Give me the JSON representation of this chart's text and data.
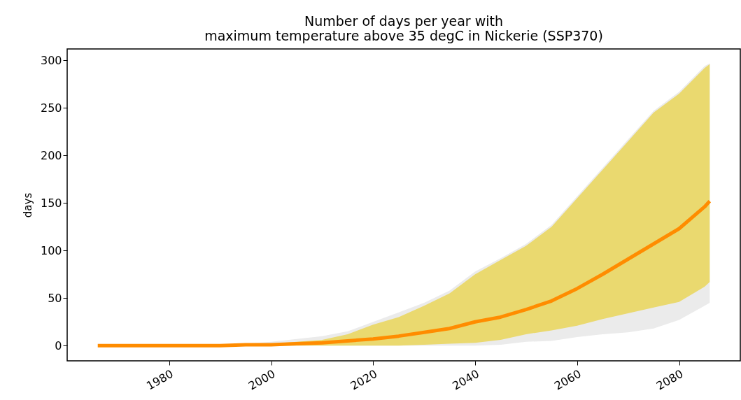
{
  "chart_data": {
    "type": "line",
    "title": "Number of days per year with\nmaximum temperature above 35 degC in Nickerie (SSP370)",
    "ylabel": "days",
    "x": [
      1966,
      1970,
      1975,
      1980,
      1985,
      1990,
      1995,
      2000,
      2005,
      2010,
      2015,
      2020,
      2025,
      2030,
      2035,
      2040,
      2045,
      2050,
      2055,
      2060,
      2065,
      2070,
      2075,
      2080,
      2085,
      2086
    ],
    "series": [
      {
        "color": "#ebebeb",
        "values": [
          null,
          null,
          null,
          null,
          null,
          null,
          null,
          null,
          null,
          null,
          null,
          null,
          null,
          null,
          null,
          null,
          null,
          null,
          null,
          null,
          null,
          null,
          null,
          null,
          null,
          null
        ],
        "lower": [
          0,
          0,
          0,
          0,
          0,
          0,
          0,
          0,
          0,
          0,
          0,
          0,
          0,
          0,
          0,
          0,
          1,
          4,
          5,
          9,
          12,
          14,
          18,
          27,
          42,
          45
        ],
        "upper": [
          0,
          0,
          0,
          0,
          0,
          0,
          2,
          4,
          7,
          10,
          15,
          25,
          35,
          45,
          58,
          78,
          92,
          107,
          127,
          157,
          187,
          217,
          247,
          267,
          294,
          297
        ]
      },
      {
        "color": "#ead96f",
        "values": [
          null,
          null,
          null,
          null,
          null,
          null,
          null,
          null,
          null,
          null,
          null,
          null,
          null,
          null,
          null,
          null,
          null,
          null,
          null,
          null,
          null,
          null,
          null,
          null,
          null,
          null
        ],
        "lower": [
          0,
          0,
          0,
          0,
          0,
          0,
          0,
          0,
          0,
          0,
          0,
          0,
          0,
          1,
          2,
          3,
          6,
          12,
          16,
          21,
          28,
          34,
          40,
          46,
          62,
          67
        ],
        "upper": [
          0,
          0,
          0,
          0,
          0,
          0,
          1,
          2,
          4,
          6,
          12,
          22,
          30,
          42,
          55,
          75,
          90,
          105,
          125,
          155,
          185,
          215,
          245,
          265,
          292,
          296
        ]
      },
      {
        "color": "#ff8c00",
        "values": [
          0,
          0,
          0,
          0,
          0,
          0,
          1,
          1,
          2,
          3,
          5,
          7,
          10,
          14,
          18,
          25,
          30,
          38,
          47,
          60,
          75,
          91,
          107,
          123,
          146,
          152
        ]
      }
    ],
    "xlim": [
      1960,
      2092
    ],
    "xticks": [
      1980,
      2000,
      2020,
      2040,
      2060,
      2080
    ],
    "ylim": [
      -16,
      312
    ],
    "yticks": [
      0,
      50,
      100,
      150,
      200,
      250,
      300
    ],
    "grid": false,
    "marker": "none",
    "line_style": "solid"
  }
}
